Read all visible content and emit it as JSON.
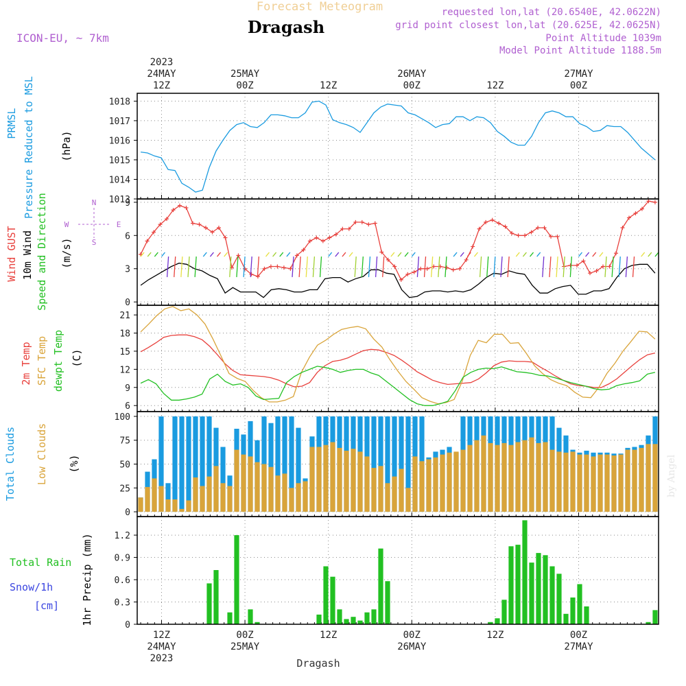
{
  "header": {
    "product": "Forecast Meteogram",
    "location": "Dragash",
    "model": "ICON-EU, ~ 7km",
    "requested": "requested lon,lat (20.6540E, 42.0622N)",
    "grid_point": "grid point closest lon,lat (20.625E, 42.0625N)",
    "point_altitude": "Point Altitude 1039m",
    "model_altitude": "Model Point Altitude 1188.5m",
    "footer": "Dragash",
    "watermark": "by Angel",
    "compass": {
      "n": "N",
      "s": "S",
      "w": "W",
      "e": "E"
    }
  },
  "colors": {
    "pressure": "#1a9be0",
    "gust": "#e8403c",
    "wind": "#000000",
    "temp": "#e8403c",
    "sfc_temp": "#d9a43a",
    "dewpoint": "#22c022",
    "total_clouds": "#1a9be0",
    "low_clouds": "#d9a43a",
    "rain": "#22c022",
    "snow": "#3a45e0",
    "label_purple": "#a050d0"
  },
  "time_axis": {
    "top_labels": [
      {
        "t": 9,
        "lines": [
          "2023",
          "24MAY",
          "12Z"
        ]
      },
      {
        "t": 21,
        "lines": [
          "25MAY",
          "00Z"
        ]
      },
      {
        "t": 33,
        "lines": [
          "12Z"
        ]
      },
      {
        "t": 45,
        "lines": [
          "26MAY",
          "00Z"
        ]
      },
      {
        "t": 57,
        "lines": [
          "12Z"
        ]
      },
      {
        "t": 69,
        "lines": [
          "27MAY",
          "00Z"
        ]
      }
    ],
    "bottom_labels": [
      {
        "t": 9,
        "lines": [
          "12Z",
          "24MAY",
          "2023"
        ]
      },
      {
        "t": 21,
        "lines": [
          "00Z",
          "25MAY"
        ]
      },
      {
        "t": 33,
        "lines": [
          "12Z"
        ]
      },
      {
        "t": 45,
        "lines": [
          "00Z",
          "26MAY"
        ]
      },
      {
        "t": 57,
        "lines": [
          "12Z"
        ]
      },
      {
        "t": 69,
        "lines": [
          "00Z",
          "27MAY"
        ]
      }
    ],
    "t_range": [
      5.5,
      80.5
    ]
  },
  "chart_data": [
    {
      "type": "line",
      "panel": "pressure",
      "ylabels": [
        "PRMSL",
        "Pressure Reduced to MSL",
        "(hPa)"
      ],
      "ylim": [
        1013,
        1018.4
      ],
      "yticks": [
        1013,
        1014,
        1015,
        1016,
        1017,
        1018
      ],
      "series": [
        {
          "values": [
            1015.4,
            1015.35,
            1015.2,
            1015.1,
            1014.5,
            1014.45,
            1013.8,
            1013.6,
            1013.35,
            1013.45,
            1014.6,
            1015.45,
            1016.0,
            1016.5,
            1016.8,
            1016.9,
            1016.7,
            1016.65,
            1016.9,
            1017.3,
            1017.3,
            1017.25,
            1017.15,
            1017.15,
            1017.4,
            1017.95,
            1018.0,
            1017.8,
            1017.05,
            1016.9,
            1016.8,
            1016.65,
            1016.4,
            1016.9,
            1017.4,
            1017.7,
            1017.85,
            1017.8,
            1017.75,
            1017.4,
            1017.3,
            1017.1,
            1016.9,
            1016.65,
            1016.8,
            1016.85,
            1017.2,
            1017.2,
            1017.0,
            1017.2,
            1017.15,
            1016.9,
            1016.45,
            1016.2,
            1015.9,
            1015.75,
            1015.75,
            1016.2,
            1016.9,
            1017.4,
            1017.5,
            1017.4,
            1017.2,
            1017.2,
            1016.85,
            1016.7,
            1016.45,
            1016.5,
            1016.75,
            1016.7,
            1016.7,
            1016.4,
            1016.0,
            1015.6,
            1015.3,
            1015.0
          ]
        }
      ]
    },
    {
      "type": "line",
      "panel": "wind",
      "ylabels": [
        "Wind GUST",
        "10m Wind",
        "Speed and Direction",
        "(m/s)"
      ],
      "ylim": [
        -0.3,
        9.3
      ],
      "yticks": [
        0,
        3,
        6,
        9
      ],
      "series": [
        {
          "name": "Wind GUST",
          "values": [
            4.3,
            5.5,
            6.3,
            7.0,
            7.5,
            8.3,
            8.7,
            8.5,
            7.1,
            7.0,
            6.7,
            6.3,
            6.7,
            5.8,
            3.1,
            4.2,
            3.0,
            2.5,
            2.3,
            3.0,
            3.2,
            3.2,
            3.1,
            3.0,
            4.2,
            4.7,
            5.5,
            5.8,
            5.5,
            5.8,
            6.1,
            6.6,
            6.6,
            7.2,
            7.2,
            7.0,
            7.1,
            4.5,
            3.8,
            3.2,
            2.0,
            2.5,
            2.7,
            3.0,
            3.0,
            3.2,
            3.2,
            3.1,
            2.9,
            3.0,
            3.8,
            5.0,
            6.6,
            7.2,
            7.4,
            7.1,
            6.8,
            6.2,
            6.0,
            6.0,
            6.3,
            6.7,
            6.7,
            5.9,
            5.9,
            3.2,
            3.3,
            3.3,
            3.7,
            2.6,
            2.8,
            3.2,
            3.2,
            4.4,
            6.7,
            7.6,
            8.0,
            8.4,
            9.1,
            9.0
          ]
        },
        {
          "name": "10m Wind",
          "values": [
            1.5,
            2.0,
            2.4,
            2.8,
            3.2,
            3.5,
            3.4,
            3.0,
            2.8,
            2.4,
            2.1,
            0.8,
            1.3,
            0.9,
            0.9,
            0.9,
            0.4,
            1.1,
            1.2,
            1.1,
            0.9,
            0.9,
            1.1,
            1.1,
            2.1,
            2.2,
            2.2,
            1.8,
            2.1,
            2.3,
            2.9,
            2.9,
            2.6,
            2.5,
            1.1,
            0.4,
            0.5,
            0.9,
            1.0,
            1.0,
            0.9,
            1.0,
            0.9,
            1.1,
            1.6,
            2.2,
            2.6,
            2.5,
            2.8,
            2.6,
            2.5,
            1.5,
            0.8,
            0.8,
            1.2,
            1.4,
            1.5,
            0.7,
            0.7,
            1.0,
            1.0,
            1.2,
            2.2,
            3.0,
            3.3,
            3.4,
            3.4,
            2.6
          ]
        }
      ]
    },
    {
      "type": "line",
      "panel": "temperature",
      "ylabels": [
        "2m Temp",
        "SFC Temp",
        "dewpt Temp",
        "(C)"
      ],
      "ylim": [
        5,
        22.6
      ],
      "yticks": [
        6,
        9,
        12,
        15,
        18,
        21
      ],
      "series": [
        {
          "name": "2m Temp",
          "values": [
            14.9,
            15.6,
            16.4,
            17.3,
            17.6,
            17.7,
            17.7,
            17.4,
            16.9,
            15.8,
            14.4,
            12.9,
            11.8,
            11.1,
            11.0,
            10.9,
            10.8,
            10.6,
            10.2,
            9.6,
            9.1,
            9.2,
            9.8,
            11.5,
            12.6,
            13.3,
            13.5,
            13.9,
            14.5,
            15.1,
            15.3,
            15.2,
            14.8,
            14.3,
            13.5,
            12.6,
            11.6,
            10.9,
            10.2,
            9.8,
            9.5,
            9.6,
            9.7,
            9.8,
            10.4,
            11.4,
            12.6,
            13.2,
            13.4,
            13.3,
            13.3,
            13.2,
            12.4,
            11.7,
            10.9,
            10.2,
            9.6,
            9.3,
            9.2,
            9.0,
            9.0,
            9.6,
            10.4,
            11.5,
            12.6,
            13.6,
            14.4,
            14.7
          ]
        },
        {
          "name": "SFC Temp",
          "values": [
            18.2,
            19.5,
            20.9,
            22.0,
            22.4,
            21.7,
            22.0,
            21.0,
            19.5,
            17.0,
            14.2,
            11.3,
            10.5,
            10.0,
            8.5,
            7.3,
            6.6,
            6.6,
            6.9,
            7.5,
            11.5,
            14.0,
            16.0,
            16.8,
            17.8,
            18.6,
            18.9,
            19.1,
            18.7,
            17.0,
            15.7,
            13.6,
            11.7,
            10.0,
            8.7,
            7.3,
            6.7,
            6.3,
            6.5,
            7.0,
            10.0,
            14.3,
            16.8,
            16.4,
            17.8,
            17.8,
            16.3,
            16.4,
            14.6,
            12.6,
            11.3,
            10.3,
            9.7,
            9.3,
            8.2,
            7.4,
            7.3,
            9.0,
            11.3,
            13.0,
            15.0,
            16.6,
            18.3,
            18.2,
            17.0
          ]
        },
        {
          "name": "dewpt Temp",
          "values": [
            9.7,
            10.3,
            9.6,
            8.0,
            6.9,
            6.9,
            7.1,
            7.4,
            7.9,
            10.4,
            11.2,
            10.0,
            9.4,
            9.6,
            9.0,
            7.6,
            7.0,
            7.1,
            7.2,
            9.8,
            10.8,
            11.5,
            12.0,
            12.5,
            12.3,
            12.0,
            11.5,
            11.8,
            12.0,
            12.0,
            11.4,
            11.0,
            10.0,
            9.0,
            8.0,
            7.0,
            6.3,
            6.0,
            6.0,
            6.3,
            6.7,
            8.5,
            10.7,
            11.5,
            12.0,
            12.2,
            12.1,
            12.4,
            12.0,
            11.6,
            11.5,
            11.3,
            11.0,
            10.9,
            10.6,
            10.2,
            9.8,
            9.5,
            9.2,
            8.8,
            8.6,
            8.7,
            9.3,
            9.6,
            9.8,
            10.1,
            11.2,
            11.5
          ]
        }
      ]
    },
    {
      "type": "bar",
      "panel": "clouds",
      "ylabels": [
        "Total Clouds",
        "Low Clouds",
        "(%)"
      ],
      "ylim": [
        -5,
        105
      ],
      "yticks": [
        0,
        25,
        50,
        75,
        100
      ],
      "series": [
        {
          "name": "Total Clouds",
          "values": [
            15,
            42,
            55,
            100,
            30,
            100,
            100,
            100,
            100,
            100,
            100,
            88,
            68,
            38,
            87,
            81,
            95,
            75,
            100,
            93,
            100,
            100,
            100,
            88,
            35,
            79,
            100,
            100,
            100,
            100,
            100,
            100,
            100,
            100,
            100,
            100,
            100,
            100,
            100,
            100,
            100,
            100,
            57,
            63,
            65,
            68,
            62,
            100,
            100,
            100,
            100,
            100,
            100,
            100,
            100,
            100,
            100,
            100,
            100,
            100,
            100,
            88,
            80,
            65,
            62,
            64,
            62,
            62,
            62,
            61,
            61,
            67,
            68,
            70,
            80,
            100
          ]
        },
        {
          "name": "Low Clouds",
          "values": [
            15,
            26,
            35,
            27,
            13,
            13,
            3,
            12,
            36,
            27,
            37,
            48,
            30,
            27,
            65,
            60,
            58,
            52,
            50,
            47,
            38,
            40,
            25,
            30,
            32,
            68,
            68,
            70,
            73,
            67,
            64,
            66,
            63,
            58,
            46,
            48,
            30,
            37,
            45,
            25,
            58,
            53,
            55,
            57,
            60,
            62,
            63,
            65,
            70,
            75,
            80,
            72,
            70,
            72,
            70,
            73,
            75,
            78,
            72,
            73,
            65,
            63,
            62,
            63,
            60,
            60,
            58,
            60,
            60,
            59,
            60,
            65,
            65,
            67,
            71,
            71
          ]
        }
      ]
    },
    {
      "type": "bar",
      "panel": "precip",
      "ylabels": [
        "Total Rain",
        "Snow/1h",
        "[cm]",
        "1hr Precip (mm)"
      ],
      "ylim": [
        0,
        1.45
      ],
      "yticks": [
        0,
        0.3,
        0.6,
        0.9,
        1.2
      ],
      "series": [
        {
          "name": "Total Rain",
          "values": [
            0,
            0,
            0,
            0,
            0,
            0,
            0,
            0,
            0,
            0,
            0.55,
            0.73,
            0,
            0.16,
            1.2,
            0,
            0.2,
            0.03,
            0,
            0,
            0,
            0,
            0,
            0,
            0,
            0,
            0.13,
            0.78,
            0.64,
            0.2,
            0.07,
            0.1,
            0.05,
            0.16,
            0.2,
            1.02,
            0.58,
            0,
            0,
            0,
            0,
            0,
            0,
            0,
            0,
            0,
            0,
            0,
            0,
            0,
            0,
            0.03,
            0.08,
            0.33,
            1.05,
            1.07,
            1.4,
            0.83,
            0.96,
            0.93,
            0.78,
            0.68,
            0.14,
            0.36,
            0.54,
            0.24,
            0,
            0,
            0,
            0,
            0,
            0,
            0,
            0,
            0.03,
            0.19
          ]
        }
      ]
    }
  ]
}
